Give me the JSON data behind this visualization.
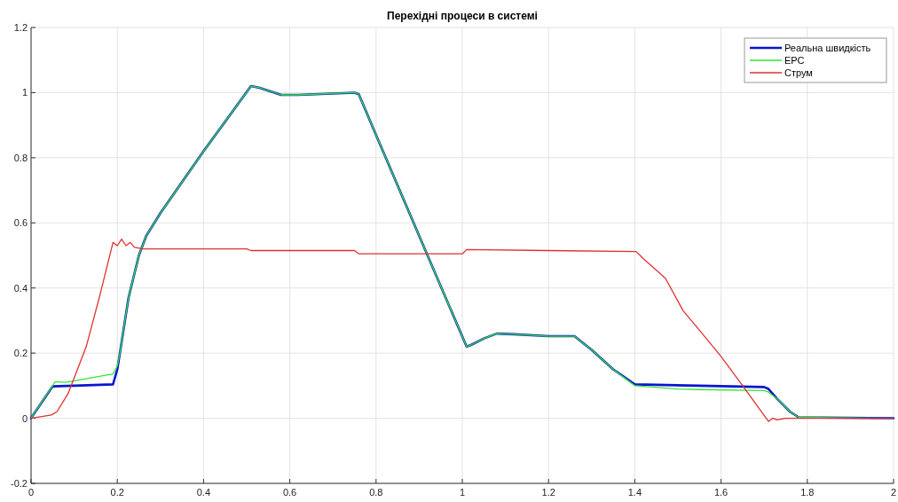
{
  "chart_data": {
    "type": "line",
    "title": "Перехідні процеси в системі",
    "xlim": [
      0,
      2
    ],
    "ylim": [
      -0.2,
      1.2
    ],
    "xticks": [
      0,
      0.2,
      0.4,
      0.6,
      0.8,
      1,
      1.2,
      1.4,
      1.6,
      1.8,
      2
    ],
    "yticks": [
      -0.2,
      0,
      0.2,
      0.4,
      0.6,
      0.8,
      1,
      1.2
    ],
    "grid": true,
    "legend": "top right",
    "line_style": "solid",
    "marker": "none",
    "series": [
      {
        "name": "Реальна швидкість",
        "color": "#0a14d0",
        "x": [
          0,
          0.05,
          0.1,
          0.19,
          0.2,
          0.206,
          0.226,
          0.25,
          0.267,
          0.3,
          0.4,
          0.51,
          0.53,
          0.58,
          0.62,
          0.75,
          0.76,
          0.8,
          0.9,
          1.01,
          1.02,
          1.05,
          1.08,
          1.12,
          1.2,
          1.26,
          1.3,
          1.35,
          1.4,
          1.55,
          1.7,
          1.71,
          1.73,
          1.76,
          1.78,
          2
        ],
        "values": [
          0,
          0.098,
          0.1,
          0.104,
          0.15,
          0.2,
          0.37,
          0.5,
          0.56,
          0.63,
          0.82,
          1.02,
          1.015,
          0.993,
          0.993,
          1.0,
          0.995,
          0.87,
          0.56,
          0.22,
          0.225,
          0.245,
          0.26,
          0.258,
          0.252,
          0.252,
          0.21,
          0.15,
          0.104,
          0.1,
          0.096,
          0.09,
          0.06,
          0.02,
          0.003,
          0
        ]
      },
      {
        "name": "ЕРС",
        "color": "#33e633",
        "x": [
          0,
          0.05,
          0.056,
          0.08,
          0.19,
          0.2,
          0.206,
          0.226,
          0.25,
          0.267,
          0.3,
          0.4,
          0.51,
          0.53,
          0.58,
          0.62,
          0.75,
          0.76,
          0.8,
          0.9,
          1.01,
          1.02,
          1.05,
          1.08,
          1.12,
          1.2,
          1.26,
          1.3,
          1.35,
          1.4,
          1.5,
          1.55,
          1.7,
          1.71,
          1.73,
          1.76,
          1.78,
          2
        ],
        "values": [
          0,
          0.1,
          0.112,
          0.11,
          0.136,
          0.16,
          0.2,
          0.37,
          0.5,
          0.56,
          0.63,
          0.82,
          1.02,
          1.015,
          0.993,
          0.993,
          1.0,
          0.995,
          0.87,
          0.56,
          0.22,
          0.225,
          0.245,
          0.26,
          0.258,
          0.252,
          0.252,
          0.21,
          0.15,
          0.1,
          0.09,
          0.088,
          0.085,
          0.08,
          0.06,
          0.02,
          0.003,
          0
        ]
      },
      {
        "name": "Струм",
        "color": "#e03030",
        "x": [
          0,
          0.047,
          0.06,
          0.086,
          0.128,
          0.16,
          0.19,
          0.2,
          0.21,
          0.22,
          0.23,
          0.24,
          0.26,
          0.5,
          0.51,
          0.75,
          0.76,
          0.8,
          1.0,
          1.01,
          1.2,
          1.403,
          1.42,
          1.471,
          1.512,
          1.55,
          1.6,
          1.65,
          1.71,
          1.72,
          1.73,
          1.75,
          1.8,
          2
        ],
        "values": [
          0,
          0.01,
          0.02,
          0.076,
          0.22,
          0.38,
          0.54,
          0.53,
          0.55,
          0.53,
          0.54,
          0.525,
          0.52,
          0.52,
          0.515,
          0.515,
          0.505,
          0.505,
          0.505,
          0.518,
          0.515,
          0.512,
          0.49,
          0.43,
          0.33,
          0.27,
          0.19,
          0.1,
          -0.01,
          0,
          -0.005,
          0,
          0,
          0
        ]
      }
    ]
  }
}
